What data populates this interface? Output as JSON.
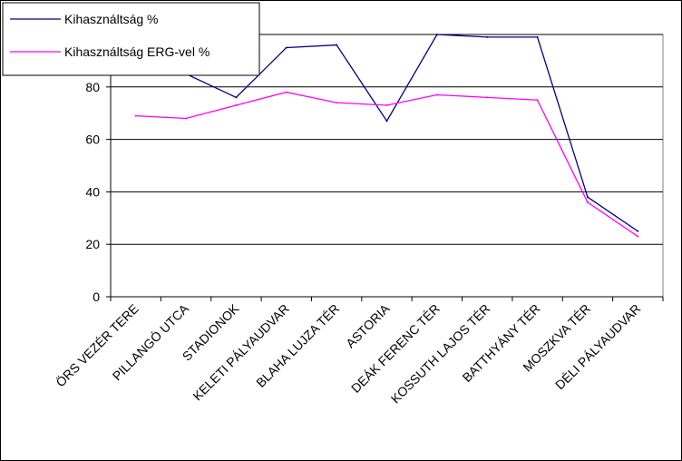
{
  "chart_data": {
    "type": "line",
    "title": "",
    "xlabel": "",
    "ylabel": "",
    "categories": [
      "ÖRS VEZÉR TERE",
      "PILLANGÓ UTCA",
      "STADIONOK",
      "KELETI PÁLYAUDVAR",
      "BLAHA LUJZA TÉR",
      "ASTORIA",
      "DEÁK FERENC TÉR",
      "KOSSUTH LAJOS TÉR",
      "BATTHYÁNY TÉR",
      "MOSZKVA TÉR",
      "DÉLI PÁLYAUDVAR"
    ],
    "series": [
      {
        "name": "Kihasználtság %",
        "color": "#000080",
        "values": [
          85,
          85,
          76,
          95,
          96,
          67,
          100,
          99,
          99,
          38,
          25
        ]
      },
      {
        "name": "Kihasználtság ERG-vel %",
        "color": "#FF00FF",
        "values": [
          69,
          68,
          73,
          78,
          74,
          73,
          77,
          76,
          75,
          36,
          23
        ]
      }
    ],
    "ylim": [
      0,
      100
    ],
    "yticks": [
      0,
      20,
      40,
      60,
      80,
      100
    ],
    "grid": true,
    "plot_background": "#ffffff",
    "legend_position": "top-left"
  }
}
